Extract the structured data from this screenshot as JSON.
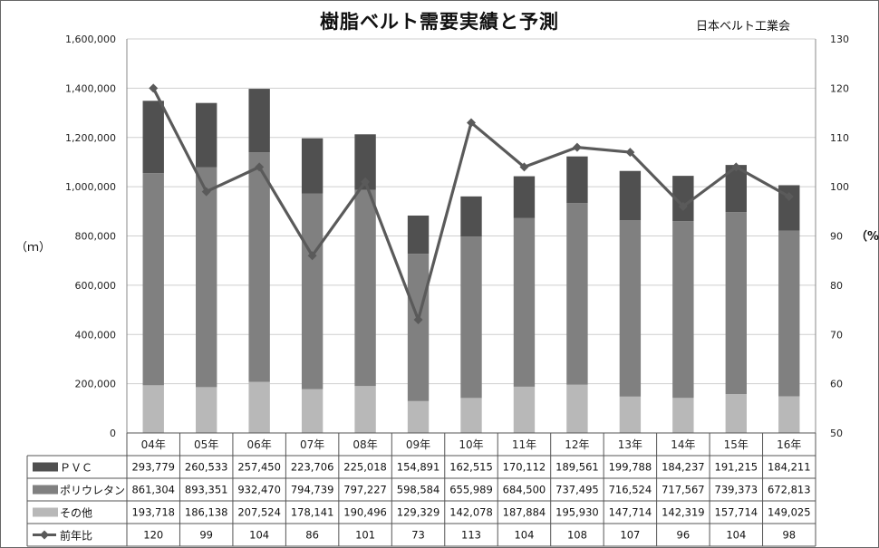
{
  "title": "樹脂ベルト需要実績と予測",
  "source": "日本ベルト工業会",
  "chart_data": {
    "type": "bar",
    "stacked": true,
    "title": "樹脂ベルト需要実績と予測",
    "categories": [
      "04年",
      "05年",
      "06年",
      "07年",
      "08年",
      "09年",
      "10年",
      "11年",
      "12年",
      "13年",
      "14年",
      "15年",
      "16年"
    ],
    "series": [
      {
        "name": "その他",
        "color": "#b8b8b8",
        "axis": "left",
        "values": [
          193718,
          186138,
          207524,
          178141,
          190496,
          129329,
          142078,
          187884,
          195930,
          147714,
          142319,
          157714,
          149025
        ],
        "labels": [
          "193,718",
          "186,138",
          "207,524",
          "178,141",
          "190,496",
          "129,329",
          "142,078",
          "187,884",
          "195,930",
          "147,714",
          "142,319",
          "157,714",
          "149,025"
        ]
      },
      {
        "name": "ポリウレタン",
        "color": "#808080",
        "axis": "left",
        "values": [
          861304,
          893351,
          932470,
          794739,
          797227,
          598584,
          655989,
          684500,
          737495,
          716524,
          717567,
          739373,
          672813
        ],
        "labels": [
          "861,304",
          "893,351",
          "932,470",
          "794,739",
          "797,227",
          "598,584",
          "655,989",
          "684,500",
          "737,495",
          "716,524",
          "717,567",
          "739,373",
          "672,813"
        ]
      },
      {
        "name": "ＰＶＣ",
        "color": "#505050",
        "axis": "left",
        "values": [
          293779,
          260533,
          257450,
          223706,
          225018,
          154891,
          162515,
          170112,
          189561,
          199788,
          184237,
          191215,
          184211
        ],
        "labels": [
          "293,779",
          "260,533",
          "257,450",
          "223,706",
          "225,018",
          "154,891",
          "162,515",
          "170,112",
          "189,561",
          "199,788",
          "184,237",
          "191,215",
          "184,211"
        ]
      },
      {
        "name": "前年比",
        "type": "line",
        "color": "#5a5a5a",
        "axis": "right",
        "values": [
          120,
          99,
          104,
          86,
          101,
          73,
          113,
          104,
          108,
          107,
          96,
          104,
          98
        ],
        "labels": [
          "120",
          "99",
          "104",
          "86",
          "101",
          "73",
          "113",
          "104",
          "108",
          "107",
          "96",
          "104",
          "98"
        ]
      }
    ],
    "table_order": [
      2,
      1,
      0,
      3
    ],
    "y_left": {
      "label": "（ｍ）",
      "range": [
        0,
        1600000
      ],
      "ticks": [
        "0",
        "200,000",
        "400,000",
        "600,000",
        "800,000",
        "1,000,000",
        "1,200,000",
        "1,400,000",
        "1,600,000"
      ]
    },
    "y_right": {
      "label": "（%）",
      "range": [
        50,
        130
      ],
      "ticks": [
        "50",
        "60",
        "70",
        "80",
        "90",
        "100",
        "110",
        "120",
        "130"
      ]
    },
    "grid": true,
    "legend": "data-table-below"
  }
}
